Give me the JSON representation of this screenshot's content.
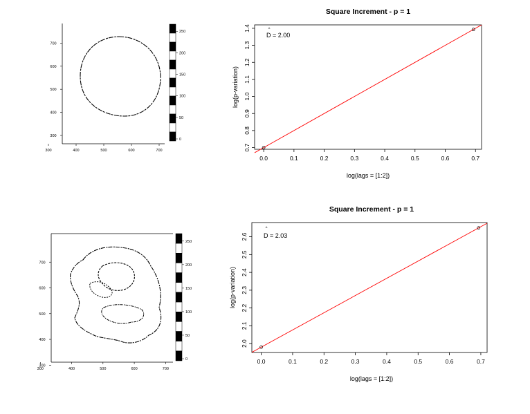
{
  "colors": {
    "axis": "#000000",
    "fit_line": "#ff0000",
    "points": "#000000",
    "contour": "#000000",
    "background": "#ffffff"
  },
  "chart_data": [
    {
      "type": "image",
      "image_kind": "binary contour (circle)",
      "x_ticks": [
        "300",
        "400",
        "500",
        "600",
        "700"
      ],
      "y_ticks": [
        "300",
        "400",
        "500",
        "600",
        "700"
      ],
      "colorbar_ticks": [
        "0",
        "50",
        "100",
        "150",
        "200",
        "250"
      ],
      "xlim": [
        200,
        750
      ],
      "ylim": [
        180,
        800
      ]
    },
    {
      "type": "scatter",
      "title": "Square Increment - p = 1",
      "xlabel": "log(lags = [1:2])",
      "ylabel": "log(p-variation)",
      "annotation": "D = 2.00",
      "x_ticks": [
        "0.0",
        "0.1",
        "0.2",
        "0.3",
        "0.4",
        "0.5",
        "0.6",
        "0.7"
      ],
      "y_ticks": [
        "0.7",
        "0.8",
        "0.9",
        "1.0",
        "1.1",
        "1.2",
        "1.3",
        "1.4"
      ],
      "xlim": [
        -0.03,
        0.72
      ],
      "ylim": [
        0.69,
        1.42
      ],
      "points": [
        {
          "x": 0.0,
          "y": 0.7
        },
        {
          "x": 0.693,
          "y": 1.393
        }
      ],
      "fit_line": {
        "slope": 1.0,
        "intercept": 0.7
      }
    },
    {
      "type": "image",
      "image_kind": "binary contour (irregular blob)",
      "x_ticks": [
        "300",
        "400",
        "500",
        "600",
        "700"
      ],
      "y_ticks": [
        "300",
        "400",
        "500",
        "600",
        "700"
      ],
      "colorbar_ticks": [
        "0",
        "50",
        "100",
        "150",
        "200",
        "250"
      ],
      "xlim": [
        200,
        750
      ],
      "ylim": [
        180,
        800
      ]
    },
    {
      "type": "scatter",
      "title": "Square Increment - p = 1",
      "xlabel": "log(lags = [1:2])",
      "ylabel": "log(p-variation)",
      "annotation": "D = 2.03",
      "x_ticks": [
        "0.0",
        "0.1",
        "0.2",
        "0.3",
        "0.4",
        "0.5",
        "0.6",
        "0.7"
      ],
      "y_ticks": [
        "2.0",
        "2.1",
        "2.2",
        "2.3",
        "2.4",
        "2.5",
        "2.6"
      ],
      "xlim": [
        -0.03,
        0.72
      ],
      "ylim": [
        1.95,
        2.68
      ],
      "points": [
        {
          "x": 0.0,
          "y": 1.98
        },
        {
          "x": 0.693,
          "y": 2.65
        }
      ],
      "fit_line": {
        "slope": 0.967,
        "intercept": 1.98
      }
    }
  ]
}
